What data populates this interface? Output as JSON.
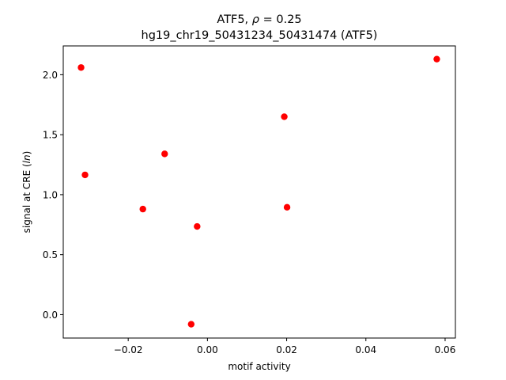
{
  "chart_data": {
    "type": "scatter",
    "title_prefix": "ATF5, ",
    "title_rho": "ρ",
    "title_suffix": " = 0.25",
    "subtitle": "hg19_chr19_50431234_50431474 (ATF5)",
    "xlabel": "motif activity",
    "ylabel_prefix": "signal at CRE (",
    "ylabel_italic": "ln",
    "ylabel_suffix": ")",
    "xlim": [
      -0.0364,
      0.0626
    ],
    "ylim": [
      -0.195,
      2.24
    ],
    "x_ticks": [
      -0.02,
      0.0,
      0.02,
      0.04,
      0.06
    ],
    "x_tick_labels": [
      "−0.02",
      "0.00",
      "0.02",
      "0.04",
      "0.06"
    ],
    "y_ticks": [
      0.0,
      0.5,
      1.0,
      1.5,
      2.0
    ],
    "y_tick_labels": [
      "0.0",
      "0.5",
      "1.0",
      "1.5",
      "2.0"
    ],
    "grid": false,
    "marker_color": "#ff0000",
    "points": [
      {
        "x": -0.0319,
        "y": 2.06
      },
      {
        "x": -0.0309,
        "y": 1.165
      },
      {
        "x": -0.0163,
        "y": 0.88
      },
      {
        "x": -0.0108,
        "y": 1.34
      },
      {
        "x": -0.0041,
        "y": -0.08
      },
      {
        "x": -0.0026,
        "y": 0.735
      },
      {
        "x": 0.0194,
        "y": 1.65
      },
      {
        "x": 0.0201,
        "y": 0.895
      },
      {
        "x": 0.0579,
        "y": 2.13
      }
    ]
  }
}
